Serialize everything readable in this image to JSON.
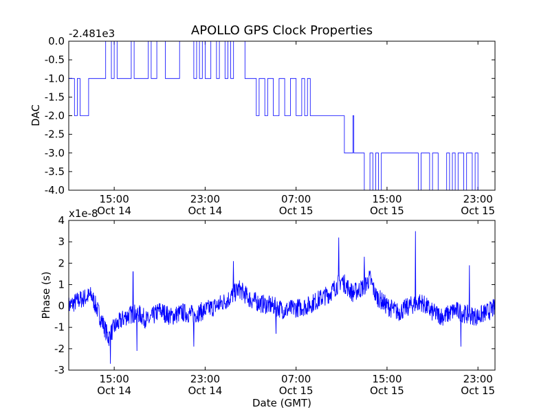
{
  "chart_data": [
    {
      "type": "line",
      "title": "APOLLO GPS Clock Properties",
      "ylabel": "DAC",
      "offset_text": "-2.481e3",
      "ylim": [
        -4.0,
        0.0
      ],
      "yticks": [
        0.0,
        -0.5,
        -1.0,
        -1.5,
        -2.0,
        -2.5,
        -3.0,
        -3.5,
        -4.0
      ],
      "ytick_labels": [
        "0.0",
        "-0.5",
        "-1.0",
        "-1.5",
        "-2.0",
        "-2.5",
        "-3.0",
        "-3.5",
        "-4.0"
      ],
      "xlim": [
        "2014-10-14T11:00",
        "2014-10-16T00:30"
      ],
      "xticks": [
        "2014-10-14T15:00",
        "2014-10-14T23:00",
        "2014-10-15T07:00",
        "2014-10-15T15:00",
        "2014-10-15T23:00"
      ],
      "xtick_labels": [
        [
          "15:00",
          "Oct 14"
        ],
        [
          "23:00",
          "Oct 14"
        ],
        [
          "07:00",
          "Oct 15"
        ],
        [
          "15:00",
          "Oct 15"
        ],
        [
          "23:00",
          "Oct 15"
        ]
      ],
      "color": "#0000ff",
      "segments": [
        {
          "x": "2014-10-14T11:00",
          "y": -1.0
        },
        {
          "x": "2014-10-14T11:30",
          "y": -2.0
        },
        {
          "x": "2014-10-14T11:45",
          "y": -1.0
        },
        {
          "x": "2014-10-14T12:00",
          "y": -2.0
        },
        {
          "x": "2014-10-14T12:45",
          "y": -1.0
        },
        {
          "x": "2014-10-14T13:45",
          "y": -1.0
        },
        {
          "x": "2014-10-14T14:15",
          "y": 0.0
        },
        {
          "x": "2014-10-14T14:45",
          "y": -1.0
        },
        {
          "x": "2014-10-14T15:00",
          "y": 0.0
        },
        {
          "x": "2014-10-14T15:15",
          "y": -1.0
        },
        {
          "x": "2014-10-14T16:30",
          "y": 0.0
        },
        {
          "x": "2014-10-14T16:45",
          "y": -1.0
        },
        {
          "x": "2014-10-14T18:00",
          "y": 0.0
        },
        {
          "x": "2014-10-14T18:15",
          "y": -1.0
        },
        {
          "x": "2014-10-14T18:45",
          "y": 0.0
        },
        {
          "x": "2014-10-14T19:30",
          "y": -1.0
        },
        {
          "x": "2014-10-14T20:45",
          "y": 0.0
        },
        {
          "x": "2014-10-14T22:00",
          "y": -1.0
        },
        {
          "x": "2014-10-14T22:15",
          "y": 0.0
        },
        {
          "x": "2014-10-14T22:30",
          "y": -1.0
        },
        {
          "x": "2014-10-14T22:45",
          "y": 0.0
        },
        {
          "x": "2014-10-14T23:00",
          "y": -1.0
        },
        {
          "x": "2014-10-14T23:30",
          "y": 0.0
        },
        {
          "x": "2014-10-15T00:00",
          "y": -1.0
        },
        {
          "x": "2014-10-15T00:15",
          "y": 0.0
        },
        {
          "x": "2014-10-15T00:45",
          "y": -1.0
        },
        {
          "x": "2014-10-15T01:00",
          "y": 0.0
        },
        {
          "x": "2014-10-15T01:15",
          "y": -1.0
        },
        {
          "x": "2014-10-15T01:30",
          "y": 0.0
        },
        {
          "x": "2014-10-15T02:30",
          "y": -1.0
        },
        {
          "x": "2014-10-15T03:30",
          "y": -2.0
        },
        {
          "x": "2014-10-15T03:45",
          "y": -1.0
        },
        {
          "x": "2014-10-15T04:15",
          "y": -2.0
        },
        {
          "x": "2014-10-15T04:30",
          "y": -1.0
        },
        {
          "x": "2014-10-15T05:00",
          "y": -2.0
        },
        {
          "x": "2014-10-15T05:30",
          "y": -1.0
        },
        {
          "x": "2014-10-15T06:00",
          "y": -2.0
        },
        {
          "x": "2014-10-15T06:30",
          "y": -1.0
        },
        {
          "x": "2014-10-15T07:00",
          "y": -2.0
        },
        {
          "x": "2014-10-15T07:30",
          "y": -1.0
        },
        {
          "x": "2014-10-15T07:45",
          "y": -2.0
        },
        {
          "x": "2014-10-15T08:00",
          "y": -1.0
        },
        {
          "x": "2014-10-15T08:15",
          "y": -2.0
        },
        {
          "x": "2014-10-15T11:15",
          "y": -3.0
        },
        {
          "x": "2014-10-15T12:00",
          "y": -2.0
        },
        {
          "x": "2014-10-15T12:05",
          "y": -3.0
        },
        {
          "x": "2014-10-15T12:30",
          "y": -3.0
        },
        {
          "x": "2014-10-15T13:00",
          "y": -4.0
        },
        {
          "x": "2014-10-15T13:30",
          "y": -3.0
        },
        {
          "x": "2014-10-15T13:45",
          "y": -4.0
        },
        {
          "x": "2014-10-15T14:00",
          "y": -3.0
        },
        {
          "x": "2014-10-15T14:15",
          "y": -4.0
        },
        {
          "x": "2014-10-15T14:30",
          "y": -3.0
        },
        {
          "x": "2014-10-15T17:45",
          "y": -4.0
        },
        {
          "x": "2014-10-15T18:00",
          "y": -3.0
        },
        {
          "x": "2014-10-15T18:45",
          "y": -4.0
        },
        {
          "x": "2014-10-15T19:00",
          "y": -3.0
        },
        {
          "x": "2014-10-15T19:30",
          "y": -4.0
        },
        {
          "x": "2014-10-15T20:15",
          "y": -3.0
        },
        {
          "x": "2014-10-15T20:30",
          "y": -4.0
        },
        {
          "x": "2014-10-15T20:45",
          "y": -3.0
        },
        {
          "x": "2014-10-15T21:00",
          "y": -4.0
        },
        {
          "x": "2014-10-15T21:15",
          "y": -3.0
        },
        {
          "x": "2014-10-15T21:45",
          "y": -4.0
        },
        {
          "x": "2014-10-15T22:00",
          "y": -3.0
        },
        {
          "x": "2014-10-15T22:30",
          "y": -4.0
        },
        {
          "x": "2014-10-15T22:45",
          "y": -3.0
        },
        {
          "x": "2014-10-15T23:00",
          "y": -4.0
        }
      ]
    },
    {
      "type": "line",
      "xlabel": "Date (GMT)",
      "ylabel": "Phase (s)",
      "offset_text": "x1e-8",
      "ylim": [
        -3,
        4
      ],
      "yticks": [
        4,
        3,
        2,
        1,
        0,
        -1,
        -2,
        -3
      ],
      "ytick_labels": [
        "4",
        "3",
        "2",
        "1",
        "0",
        "-1",
        "-2",
        "-3"
      ],
      "xlim": [
        "2014-10-14T11:00",
        "2014-10-16T00:30"
      ],
      "xticks": [
        "2014-10-14T15:00",
        "2014-10-14T23:00",
        "2014-10-15T07:00",
        "2014-10-15T15:00",
        "2014-10-15T23:00"
      ],
      "xtick_labels": [
        [
          "15:00",
          "Oct 14"
        ],
        [
          "23:00",
          "Oct 14"
        ],
        [
          "07:00",
          "Oct 15"
        ],
        [
          "15:00",
          "Oct 15"
        ],
        [
          "23:00",
          "Oct 15"
        ]
      ],
      "color": "#0000ff",
      "trend": [
        {
          "x": "2014-10-14T11:00",
          "y": 0.0
        },
        {
          "x": "2014-10-14T12:00",
          "y": 0.3
        },
        {
          "x": "2014-10-14T13:00",
          "y": 0.5
        },
        {
          "x": "2014-10-14T14:00",
          "y": -0.8
        },
        {
          "x": "2014-10-14T14:30",
          "y": -1.5
        },
        {
          "x": "2014-10-14T15:00",
          "y": -1.0
        },
        {
          "x": "2014-10-14T16:00",
          "y": -0.5
        },
        {
          "x": "2014-10-14T17:00",
          "y": -0.3
        },
        {
          "x": "2014-10-14T18:00",
          "y": -0.7
        },
        {
          "x": "2014-10-14T19:00",
          "y": -0.2
        },
        {
          "x": "2014-10-14T20:00",
          "y": -0.5
        },
        {
          "x": "2014-10-14T21:00",
          "y": -0.3
        },
        {
          "x": "2014-10-14T22:00",
          "y": -0.4
        },
        {
          "x": "2014-10-14T23:00",
          "y": -0.2
        },
        {
          "x": "2014-10-15T00:00",
          "y": 0.0
        },
        {
          "x": "2014-10-15T01:00",
          "y": 0.3
        },
        {
          "x": "2014-10-15T02:00",
          "y": 0.8
        },
        {
          "x": "2014-10-15T03:00",
          "y": 0.3
        },
        {
          "x": "2014-10-15T04:00",
          "y": 0.1
        },
        {
          "x": "2014-10-15T05:00",
          "y": 0.0
        },
        {
          "x": "2014-10-15T06:00",
          "y": -0.2
        },
        {
          "x": "2014-10-15T07:00",
          "y": -0.1
        },
        {
          "x": "2014-10-15T08:00",
          "y": 0.0
        },
        {
          "x": "2014-10-15T09:00",
          "y": 0.3
        },
        {
          "x": "2014-10-15T10:00",
          "y": 0.6
        },
        {
          "x": "2014-10-15T11:00",
          "y": 1.2
        },
        {
          "x": "2014-10-15T12:00",
          "y": 0.6
        },
        {
          "x": "2014-10-15T13:00",
          "y": 0.9
        },
        {
          "x": "2014-10-15T13:30",
          "y": 1.3
        },
        {
          "x": "2014-10-15T14:00",
          "y": 0.5
        },
        {
          "x": "2014-10-15T15:00",
          "y": 0.0
        },
        {
          "x": "2014-10-15T16:00",
          "y": -0.3
        },
        {
          "x": "2014-10-15T17:00",
          "y": 0.0
        },
        {
          "x": "2014-10-15T18:00",
          "y": 0.2
        },
        {
          "x": "2014-10-15T19:00",
          "y": -0.3
        },
        {
          "x": "2014-10-15T20:00",
          "y": -0.5
        },
        {
          "x": "2014-10-15T21:00",
          "y": -0.2
        },
        {
          "x": "2014-10-15T22:00",
          "y": -0.4
        },
        {
          "x": "2014-10-15T23:00",
          "y": -0.5
        },
        {
          "x": "2014-10-16T00:30",
          "y": -0.1
        }
      ],
      "spikes": [
        {
          "x": "2014-10-14T14:40",
          "y": -2.7
        },
        {
          "x": "2014-10-14T16:40",
          "y": 1.6
        },
        {
          "x": "2014-10-14T17:00",
          "y": -2.1
        },
        {
          "x": "2014-10-14T22:00",
          "y": -1.9
        },
        {
          "x": "2014-10-15T01:30",
          "y": 2.1
        },
        {
          "x": "2014-10-15T05:15",
          "y": -1.3
        },
        {
          "x": "2014-10-15T10:45",
          "y": 3.2
        },
        {
          "x": "2014-10-15T13:00",
          "y": 2.3
        },
        {
          "x": "2014-10-15T17:30",
          "y": 3.5
        },
        {
          "x": "2014-10-15T22:15",
          "y": 1.9
        },
        {
          "x": "2014-10-15T21:30",
          "y": -1.9
        }
      ],
      "noise_amplitude": 0.45
    }
  ]
}
